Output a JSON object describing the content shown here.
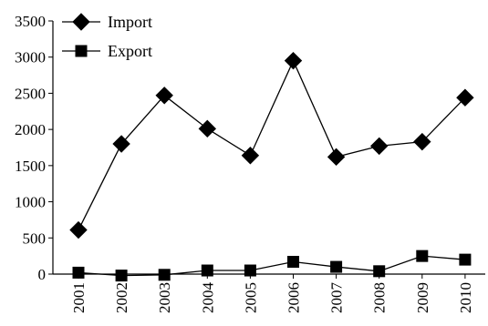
{
  "chart_data": {
    "type": "line",
    "categories": [
      "2001",
      "2002",
      "2003",
      "2004",
      "2005",
      "2006",
      "2007",
      "2008",
      "2009",
      "2010"
    ],
    "series": [
      {
        "name": "Import",
        "marker": "diamond",
        "values": [
          610,
          1800,
          2470,
          2010,
          1640,
          2950,
          1620,
          1770,
          1830,
          2440
        ]
      },
      {
        "name": "Export",
        "marker": "square",
        "values": [
          20,
          -20,
          -10,
          50,
          50,
          170,
          100,
          40,
          250,
          200
        ]
      }
    ],
    "y_ticks": [
      0,
      500,
      1000,
      1500,
      2000,
      2500,
      3000,
      3500
    ],
    "ylim": [
      0,
      3500
    ],
    "grid": false,
    "legend_position": "top-left",
    "colors": {
      "line": "#000000",
      "marker": "#000000"
    }
  }
}
